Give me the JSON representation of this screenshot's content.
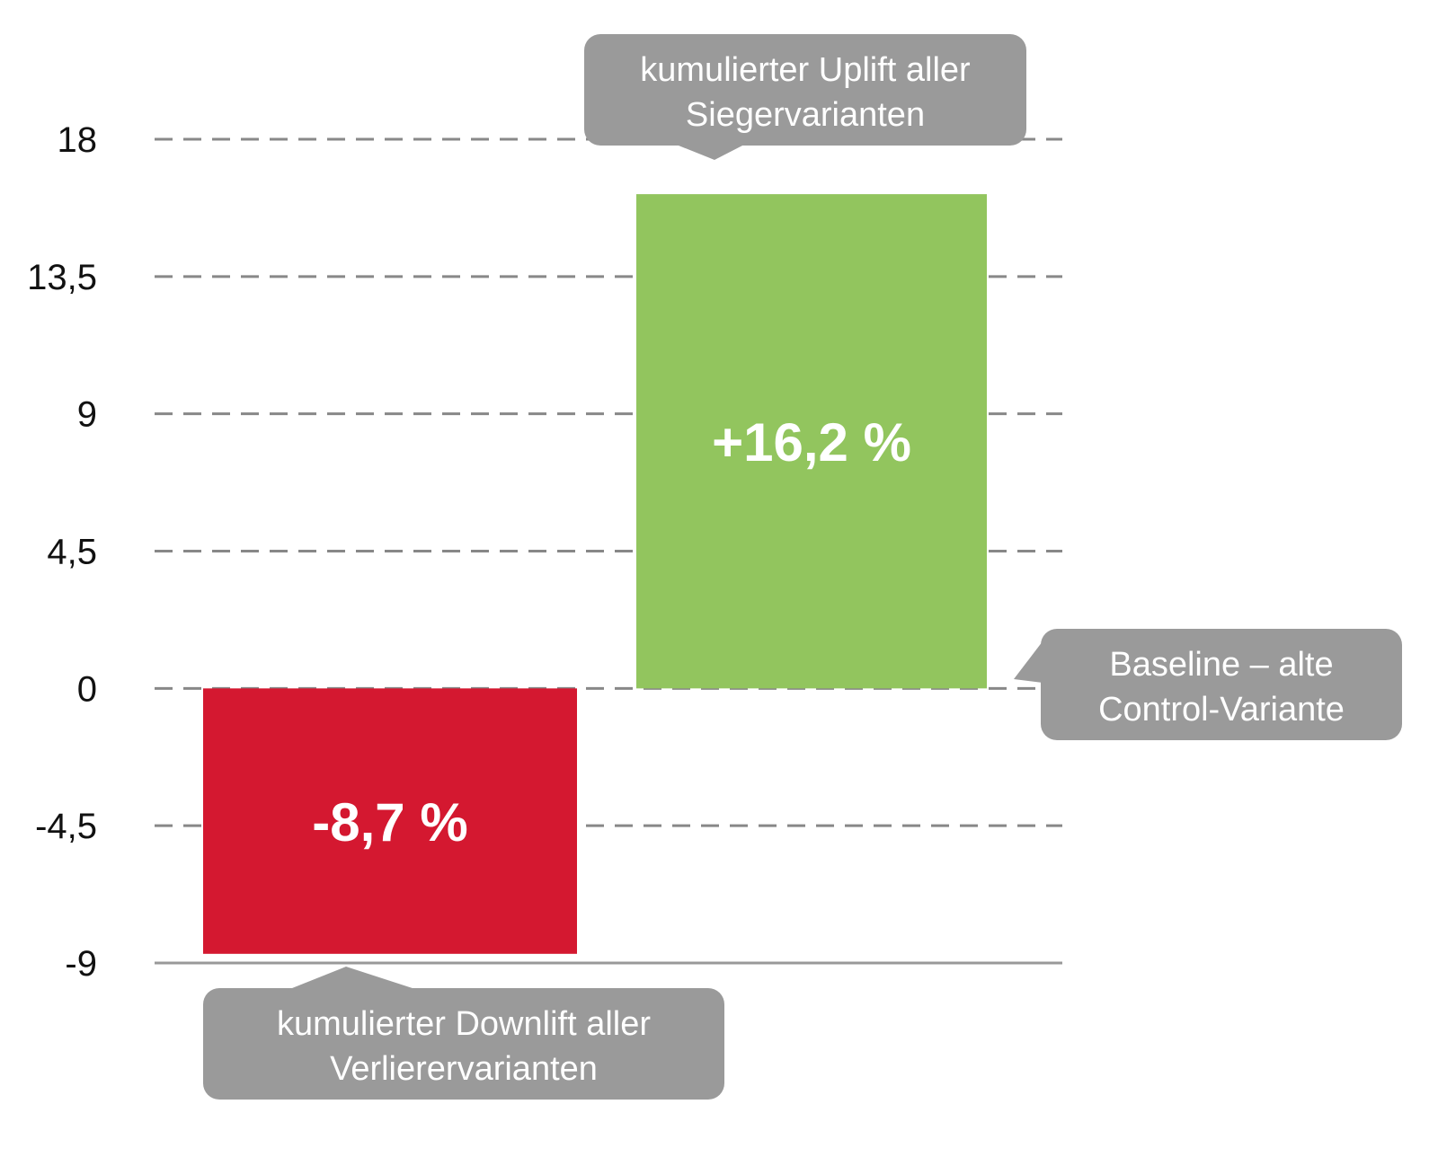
{
  "chart_data": {
    "type": "bar",
    "title": "",
    "xlabel": "",
    "ylabel": "",
    "ylim": [
      -9,
      18
    ],
    "yticks": [
      "18",
      "13,5",
      "9",
      "4,5",
      "0",
      "-4,5",
      "-9"
    ],
    "ytick_values": [
      18,
      13.5,
      9,
      4.5,
      0,
      -4.5,
      -9
    ],
    "grid": "dashed horizontal",
    "bars": [
      {
        "value": -8.7,
        "label": "-8,7 %",
        "color": "#d41830"
      },
      {
        "value": 16.2,
        "label": "+16,2 %",
        "color": "#92c55e"
      }
    ],
    "annotations": {
      "uplift": {
        "lines": [
          "kumulierter Uplift aller",
          "Siegervarianten"
        ]
      },
      "baseline": {
        "lines": [
          "Baseline – alte",
          "Control-Variante"
        ]
      },
      "downlift": {
        "lines": [
          "kumulierter Downlift aller",
          "Verlierervarianten"
        ]
      }
    },
    "colors": {
      "callout": "#9a9a9a",
      "grid": "#888888",
      "axis": "#999999"
    }
  }
}
